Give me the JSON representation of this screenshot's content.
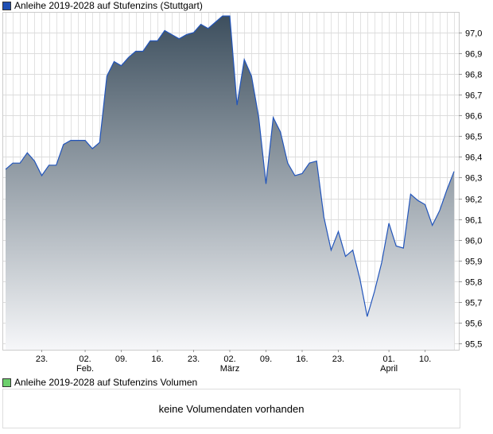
{
  "legend_price": {
    "label": "Anleihe 2019-2028 auf Stufenzins (Stuttgart)",
    "color": "#1f4fb4"
  },
  "legend_volume": {
    "label": "Anleihe 2019-2028 auf Stufenzins Volumen",
    "color": "#6ccf6c"
  },
  "volume_message": "keine Volumendaten vorhanden",
  "chart_data": {
    "type": "area",
    "title": "Anleihe 2019-2028 auf Stufenzins (Stuttgart)",
    "xlabel": "",
    "ylabel": "",
    "ylim": [
      95.45,
      97.1
    ],
    "grid": true,
    "line_color": "#2255bb",
    "fill_top_color": "#3d4f5e",
    "fill_bottom_color": "#f6f7f9",
    "yticks": [
      "95,5",
      "95,6",
      "95,7",
      "95,8",
      "95,9",
      "96,0",
      "96,1",
      "96,2",
      "96,3",
      "96,4",
      "96,5",
      "96,6",
      "96,7",
      "96,8",
      "96,9",
      "97,0"
    ],
    "ytick_values": [
      95.5,
      95.6,
      95.7,
      95.8,
      95.9,
      96.0,
      96.1,
      96.2,
      96.3,
      96.4,
      96.5,
      96.6,
      96.7,
      96.8,
      96.9,
      97.0
    ],
    "xticks": [
      {
        "index": 5,
        "label": "23.",
        "month": ""
      },
      {
        "index": 11,
        "label": "02.",
        "month": "Feb."
      },
      {
        "index": 16,
        "label": "09.",
        "month": ""
      },
      {
        "index": 21,
        "label": "16.",
        "month": ""
      },
      {
        "index": 26,
        "label": "23.",
        "month": ""
      },
      {
        "index": 31,
        "label": "02.",
        "month": "März"
      },
      {
        "index": 36,
        "label": "09.",
        "month": ""
      },
      {
        "index": 41,
        "label": "16.",
        "month": ""
      },
      {
        "index": 46,
        "label": "23.",
        "month": ""
      },
      {
        "index": 53,
        "label": "01.",
        "month": "April"
      },
      {
        "index": 58,
        "label": "10.",
        "month": ""
      }
    ],
    "values": [
      96.34,
      96.37,
      96.37,
      96.42,
      96.38,
      96.31,
      96.36,
      96.36,
      96.46,
      96.48,
      96.48,
      96.48,
      96.44,
      96.47,
      96.79,
      96.86,
      96.84,
      96.88,
      96.91,
      96.91,
      96.96,
      96.96,
      97.01,
      96.99,
      96.97,
      96.99,
      97.0,
      97.04,
      97.02,
      97.05,
      97.08,
      97.08,
      96.65,
      96.87,
      96.79,
      96.59,
      96.27,
      96.59,
      96.52,
      96.37,
      96.31,
      96.32,
      96.37,
      96.38,
      96.11,
      95.95,
      96.04,
      95.92,
      95.95,
      95.81,
      95.63,
      95.75,
      95.89,
      96.08,
      95.97,
      95.96,
      96.22,
      96.19,
      96.17,
      96.07,
      96.14,
      96.24,
      96.33
    ]
  }
}
